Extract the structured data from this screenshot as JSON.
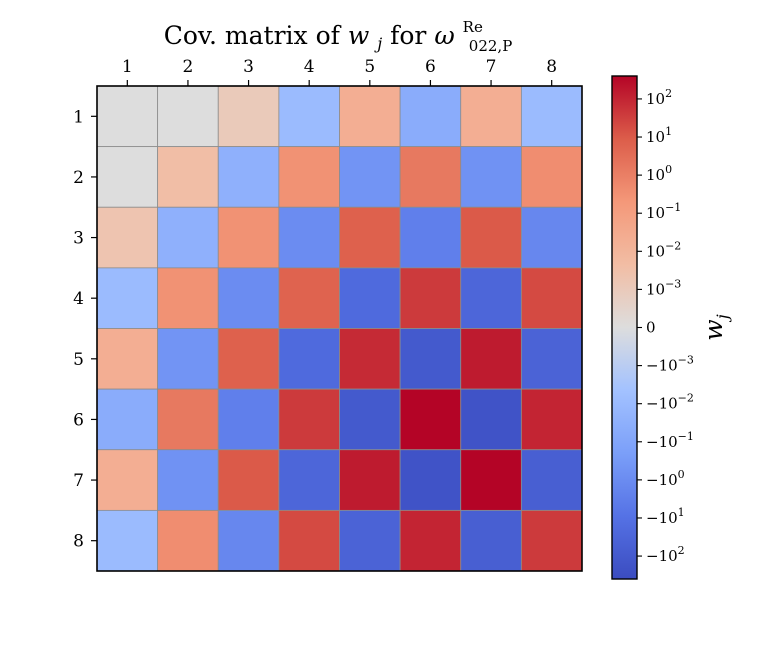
{
  "chart_data": {
    "type": "heatmap",
    "title": {
      "prefix": "Cov. matrix of ",
      "w_base": "w",
      "w_sub": "j",
      "mid": " for ",
      "omega_base": "ω",
      "omega_sup": "Re",
      "omega_sub": "022,P"
    },
    "x_ticks": [
      "1",
      "2",
      "3",
      "4",
      "5",
      "6",
      "7",
      "8"
    ],
    "y_ticks": [
      "1",
      "2",
      "3",
      "4",
      "5",
      "6",
      "7",
      "8"
    ],
    "scale": "symlog",
    "values": [
      [
        0,
        0,
        0.001,
        -0.01,
        0.02,
        -0.05,
        0.02,
        -0.01
      ],
      [
        0,
        0.004,
        -0.03,
        0.3,
        -0.5,
        1.5,
        -0.6,
        0.4
      ],
      [
        0.002,
        -0.03,
        0.3,
        -1,
        7,
        -3,
        10,
        -1.5
      ],
      [
        -0.01,
        0.3,
        -1,
        6,
        -20,
        40,
        -30,
        20
      ],
      [
        0.02,
        -0.5,
        7,
        -20,
        80,
        -100,
        150,
        -40
      ],
      [
        -0.05,
        1.5,
        -3,
        40,
        -100,
        400,
        -200,
        100
      ],
      [
        0.02,
        -0.6,
        10,
        -30,
        150,
        -200,
        400,
        -60
      ],
      [
        -0.01,
        0.4,
        -1.5,
        20,
        -40,
        100,
        -60,
        40
      ]
    ],
    "colorbar": {
      "label_base": "w",
      "label_sub": "j",
      "ticks": [
        {
          "value": 100,
          "base": "10",
          "exp": "2"
        },
        {
          "value": 10,
          "base": "10",
          "exp": "1"
        },
        {
          "value": 1,
          "base": "10",
          "exp": "0"
        },
        {
          "value": 0.1,
          "base": "10",
          "exp": "−1"
        },
        {
          "value": 0.01,
          "base": "10",
          "exp": "−2"
        },
        {
          "value": 0.001,
          "base": "10",
          "exp": "−3"
        },
        {
          "value": 0,
          "base": "0",
          "exp": ""
        },
        {
          "value": -0.001,
          "base": "−10",
          "exp": "−3"
        },
        {
          "value": -0.01,
          "base": "−10",
          "exp": "−2"
        },
        {
          "value": -0.1,
          "base": "−10",
          "exp": "−1"
        },
        {
          "value": -1,
          "base": "−10",
          "exp": "0"
        },
        {
          "value": -10,
          "base": "−10",
          "exp": "1"
        },
        {
          "value": -100,
          "base": "−10",
          "exp": "2"
        }
      ],
      "vmin": -400,
      "vmax": 400,
      "linthresh": 0.001
    },
    "colormap": "coolwarm"
  }
}
